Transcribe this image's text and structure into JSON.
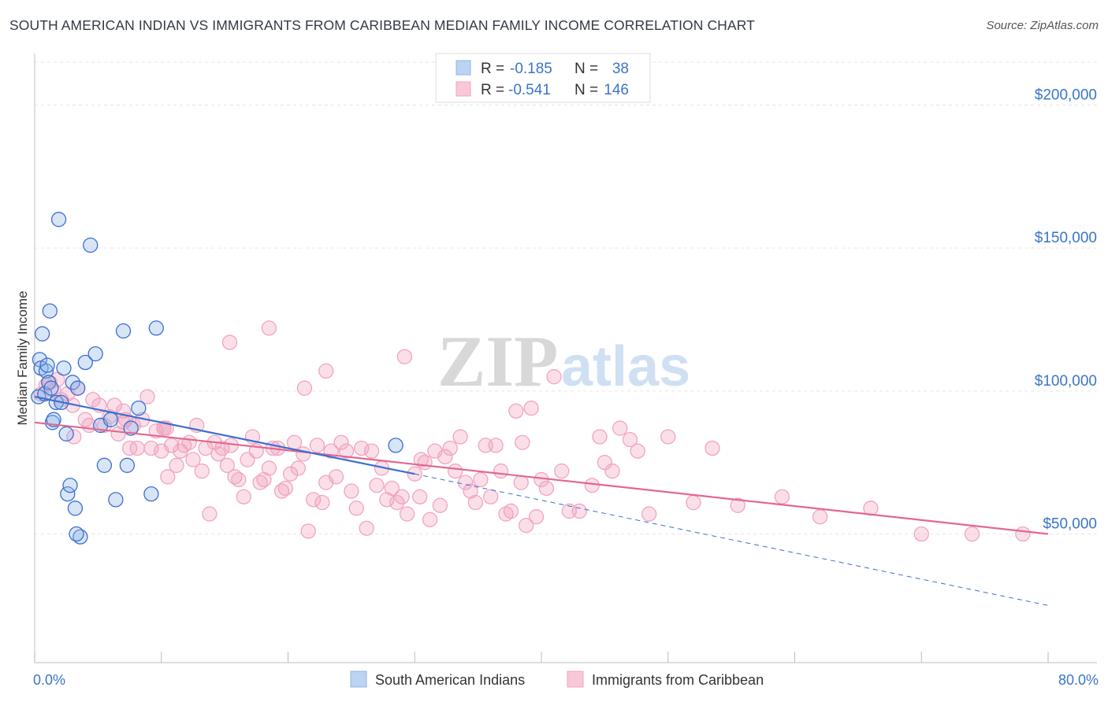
{
  "title": "SOUTH AMERICAN INDIAN VS IMMIGRANTS FROM CARIBBEAN MEDIAN FAMILY INCOME CORRELATION CHART",
  "source": "Source: ZipAtlas.com",
  "watermark": {
    "zip": "ZIP",
    "atlas": "atlas"
  },
  "colors": {
    "blue": "#8fb5e8",
    "blue_line": "#3b6fd0",
    "pink": "#f1a4bf",
    "pink_line": "#e2688f",
    "accent_text": "#3b74c9"
  },
  "legend": {
    "r_label": "R =",
    "n_label": "N =",
    "series1": {
      "r": "-0.185",
      "n": "38"
    },
    "series2": {
      "r": "-0.541",
      "n": "146"
    }
  },
  "chart_data": {
    "type": "scatter",
    "xlabel": "",
    "ylabel": "Median Family Income",
    "xlim": [
      0,
      80
    ],
    "ylim": [
      5000,
      215000
    ],
    "x_tick_labels": [
      "0.0%",
      "80.0%"
    ],
    "y_ticks": [
      50000,
      100000,
      150000,
      200000
    ],
    "y_tick_labels": [
      "$50,000",
      "$100,000",
      "$150,000",
      "$200,000"
    ],
    "series": [
      {
        "name": "South American Indians",
        "color": "#8fb5e8",
        "trend": {
          "x0": 0,
          "y0": 98000,
          "x1": 30,
          "y1": 71000,
          "dash_to": 80,
          "dash_y": 25000
        },
        "points": [
          [
            0.3,
            98000
          ],
          [
            0.4,
            111000
          ],
          [
            0.5,
            108000
          ],
          [
            0.6,
            120000
          ],
          [
            0.8,
            99000
          ],
          [
            0.9,
            107000
          ],
          [
            1.0,
            109000
          ],
          [
            1.1,
            103000
          ],
          [
            1.2,
            128000
          ],
          [
            1.3,
            101000
          ],
          [
            1.4,
            89000
          ],
          [
            1.5,
            90000
          ],
          [
            1.7,
            96000
          ],
          [
            1.9,
            160000
          ],
          [
            2.1,
            96000
          ],
          [
            2.3,
            108000
          ],
          [
            2.5,
            85000
          ],
          [
            2.6,
            64000
          ],
          [
            2.8,
            67000
          ],
          [
            3.0,
            103000
          ],
          [
            3.2,
            59000
          ],
          [
            3.4,
            101000
          ],
          [
            3.6,
            49000
          ],
          [
            4.0,
            110000
          ],
          [
            4.4,
            151000
          ],
          [
            4.8,
            113000
          ],
          [
            5.2,
            88000
          ],
          [
            5.5,
            74000
          ],
          [
            6.0,
            90000
          ],
          [
            6.4,
            62000
          ],
          [
            7.0,
            121000
          ],
          [
            7.3,
            74000
          ],
          [
            7.6,
            87000
          ],
          [
            8.2,
            94000
          ],
          [
            9.2,
            64000
          ],
          [
            9.6,
            122000
          ],
          [
            28.5,
            81000
          ],
          [
            3.3,
            50000
          ]
        ]
      },
      {
        "name": "Immigrants from Caribbean",
        "color": "#f1a4bf",
        "trend": {
          "x0": 0,
          "y0": 89000,
          "x1": 80,
          "y1": 50000
        },
        "points": [
          [
            0.5,
            99000
          ],
          [
            0.9,
            102000
          ],
          [
            1.2,
            103000
          ],
          [
            1.5,
            100000
          ],
          [
            1.8,
            104000
          ],
          [
            2.1,
            97000
          ],
          [
            2.6,
            99000
          ],
          [
            3.0,
            95000
          ],
          [
            3.1,
            84000
          ],
          [
            3.4,
            101000
          ],
          [
            4.0,
            90000
          ],
          [
            4.3,
            88000
          ],
          [
            4.6,
            97000
          ],
          [
            5.1,
            95000
          ],
          [
            5.5,
            88000
          ],
          [
            5.9,
            91000
          ],
          [
            6.3,
            95000
          ],
          [
            6.6,
            85000
          ],
          [
            7.0,
            89000
          ],
          [
            7.2,
            90000
          ],
          [
            7.5,
            80000
          ],
          [
            7.8,
            88000
          ],
          [
            8.1,
            80000
          ],
          [
            8.5,
            90000
          ],
          [
            8.9,
            98000
          ],
          [
            9.2,
            80000
          ],
          [
            9.6,
            86000
          ],
          [
            10.0,
            79000
          ],
          [
            10.2,
            87000
          ],
          [
            10.5,
            70000
          ],
          [
            10.8,
            81000
          ],
          [
            11.2,
            74000
          ],
          [
            11.5,
            79000
          ],
          [
            11.8,
            81000
          ],
          [
            12.2,
            82000
          ],
          [
            12.5,
            76000
          ],
          [
            12.8,
            88000
          ],
          [
            13.2,
            72000
          ],
          [
            13.5,
            80000
          ],
          [
            13.8,
            57000
          ],
          [
            14.2,
            82000
          ],
          [
            14.5,
            78000
          ],
          [
            14.8,
            80000
          ],
          [
            15.2,
            74000
          ],
          [
            15.5,
            81000
          ],
          [
            15.8,
            70000
          ],
          [
            16.1,
            69000
          ],
          [
            16.5,
            63000
          ],
          [
            16.8,
            76000
          ],
          [
            17.2,
            84000
          ],
          [
            17.5,
            79000
          ],
          [
            17.8,
            68000
          ],
          [
            18.1,
            69000
          ],
          [
            18.5,
            73000
          ],
          [
            18.8,
            80000
          ],
          [
            19.2,
            80000
          ],
          [
            19.5,
            65000
          ],
          [
            19.8,
            66000
          ],
          [
            20.2,
            71000
          ],
          [
            20.5,
            82000
          ],
          [
            20.8,
            73000
          ],
          [
            21.2,
            78000
          ],
          [
            21.6,
            51000
          ],
          [
            22.0,
            62000
          ],
          [
            22.3,
            81000
          ],
          [
            22.7,
            61000
          ],
          [
            23.0,
            68000
          ],
          [
            23.4,
            79000
          ],
          [
            23.8,
            70000
          ],
          [
            24.2,
            82000
          ],
          [
            24.6,
            79000
          ],
          [
            25.0,
            65000
          ],
          [
            25.4,
            59000
          ],
          [
            25.8,
            80000
          ],
          [
            26.2,
            52000
          ],
          [
            26.6,
            79000
          ],
          [
            27.0,
            67000
          ],
          [
            27.4,
            73000
          ],
          [
            27.8,
            62000
          ],
          [
            28.2,
            66000
          ],
          [
            28.6,
            61000
          ],
          [
            29.0,
            63000
          ],
          [
            29.4,
            57000
          ],
          [
            30.0,
            71000
          ],
          [
            30.4,
            63000
          ],
          [
            30.8,
            75000
          ],
          [
            31.2,
            55000
          ],
          [
            31.6,
            79000
          ],
          [
            32.0,
            60000
          ],
          [
            32.4,
            77000
          ],
          [
            32.8,
            80000
          ],
          [
            33.2,
            72000
          ],
          [
            33.6,
            84000
          ],
          [
            34.0,
            68000
          ],
          [
            34.4,
            65000
          ],
          [
            34.8,
            61000
          ],
          [
            35.2,
            69000
          ],
          [
            35.6,
            81000
          ],
          [
            36.0,
            63000
          ],
          [
            36.4,
            81000
          ],
          [
            36.8,
            72000
          ],
          [
            37.2,
            57000
          ],
          [
            37.6,
            58000
          ],
          [
            38.0,
            93000
          ],
          [
            38.4,
            68000
          ],
          [
            38.8,
            53000
          ],
          [
            39.2,
            94000
          ],
          [
            39.6,
            56000
          ],
          [
            40.0,
            69000
          ],
          [
            40.4,
            66000
          ],
          [
            41.0,
            105000
          ],
          [
            41.6,
            72000
          ],
          [
            42.2,
            58000
          ],
          [
            43.0,
            58000
          ],
          [
            44.0,
            67000
          ],
          [
            44.6,
            84000
          ],
          [
            45.0,
            75000
          ],
          [
            45.6,
            72000
          ],
          [
            46.2,
            87000
          ],
          [
            47.0,
            83000
          ],
          [
            47.6,
            79000
          ],
          [
            48.5,
            57000
          ],
          [
            50.0,
            84000
          ],
          [
            52.0,
            61000
          ],
          [
            53.5,
            80000
          ],
          [
            55.5,
            60000
          ],
          [
            59.0,
            63000
          ],
          [
            62.0,
            56000
          ],
          [
            66.0,
            59000
          ],
          [
            70.0,
            50000
          ],
          [
            74.0,
            50000
          ],
          [
            78.0,
            50000
          ],
          [
            10.4,
            87000
          ],
          [
            15.4,
            117000
          ],
          [
            18.5,
            122000
          ],
          [
            23.0,
            107000
          ],
          [
            29.2,
            112000
          ],
          [
            21.3,
            101000
          ],
          [
            38.5,
            82000
          ],
          [
            10.2,
            87000
          ],
          [
            7.0,
            93000
          ],
          [
            30.5,
            76000
          ]
        ]
      }
    ]
  }
}
